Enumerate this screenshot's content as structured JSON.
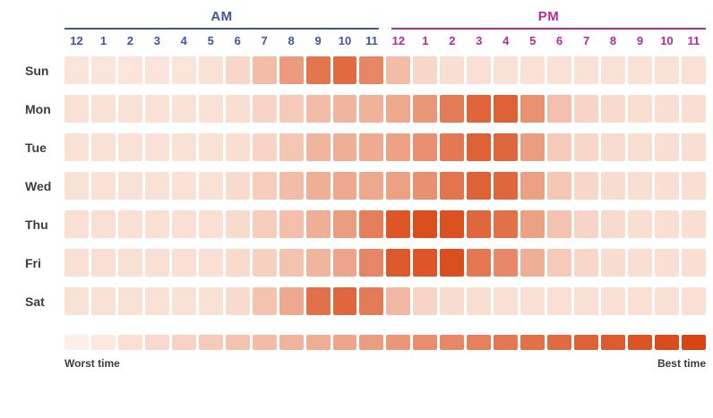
{
  "header": {
    "am_label": "AM",
    "pm_label": "PM"
  },
  "legend": {
    "worst_label": "Worst time",
    "best_label": "Best time"
  },
  "chart_data": {
    "type": "heatmap",
    "title": "Best times heatmap by day of week and hour",
    "columns_am": [
      "12",
      "1",
      "2",
      "3",
      "4",
      "5",
      "6",
      "7",
      "8",
      "9",
      "10",
      "11"
    ],
    "columns_pm": [
      "12",
      "1",
      "2",
      "3",
      "4",
      "5",
      "6",
      "7",
      "8",
      "9",
      "10",
      "11"
    ],
    "rows": [
      "Sun",
      "Mon",
      "Tue",
      "Wed",
      "Thu",
      "Fri",
      "Sat"
    ],
    "series": [
      {
        "name": "Sun",
        "values": [
          6,
          6,
          6,
          6,
          6,
          8,
          14,
          30,
          50,
          72,
          78,
          62,
          30,
          14,
          10,
          9,
          8,
          8,
          8,
          8,
          8,
          8,
          8,
          8
        ]
      },
      {
        "name": "Mon",
        "values": [
          8,
          8,
          8,
          8,
          8,
          8,
          10,
          16,
          22,
          30,
          34,
          36,
          42,
          52,
          68,
          82,
          84,
          55,
          28,
          16,
          12,
          10,
          10,
          10
        ]
      },
      {
        "name": "Tue",
        "values": [
          8,
          8,
          8,
          8,
          8,
          8,
          10,
          16,
          24,
          34,
          38,
          40,
          46,
          56,
          70,
          84,
          80,
          48,
          22,
          14,
          11,
          10,
          10,
          10
        ]
      },
      {
        "name": "Wed",
        "values": [
          8,
          8,
          8,
          8,
          8,
          8,
          12,
          20,
          30,
          38,
          42,
          42,
          46,
          56,
          72,
          84,
          80,
          46,
          24,
          14,
          11,
          10,
          10,
          10
        ]
      },
      {
        "name": "Thu",
        "values": [
          9,
          9,
          9,
          9,
          9,
          9,
          12,
          20,
          28,
          38,
          48,
          66,
          90,
          95,
          93,
          80,
          74,
          46,
          26,
          16,
          12,
          10,
          10,
          10
        ]
      },
      {
        "name": "Fri",
        "values": [
          9,
          9,
          9,
          9,
          9,
          9,
          12,
          18,
          26,
          34,
          44,
          62,
          88,
          90,
          94,
          70,
          60,
          38,
          22,
          14,
          11,
          10,
          10,
          10
        ]
      },
      {
        "name": "Sat",
        "values": [
          8,
          8,
          8,
          8,
          8,
          8,
          12,
          26,
          42,
          74,
          80,
          68,
          32,
          16,
          11,
          10,
          9,
          9,
          9,
          9,
          9,
          9,
          9,
          9
        ]
      }
    ],
    "legend_values": [
      0,
      4,
      9,
      13,
      17,
      22,
      26,
      30,
      35,
      39,
      43,
      48,
      52,
      57,
      61,
      65,
      70,
      74,
      78,
      83,
      87,
      91,
      96,
      100
    ],
    "value_range": [
      0,
      100
    ],
    "colors": {
      "min_cell": "#fdefe7",
      "max_cell": "#d84513",
      "am": "#4053a3",
      "pm": "#b42a9c",
      "day_label": "#3d3d3d",
      "background": "#ffffff"
    }
  }
}
